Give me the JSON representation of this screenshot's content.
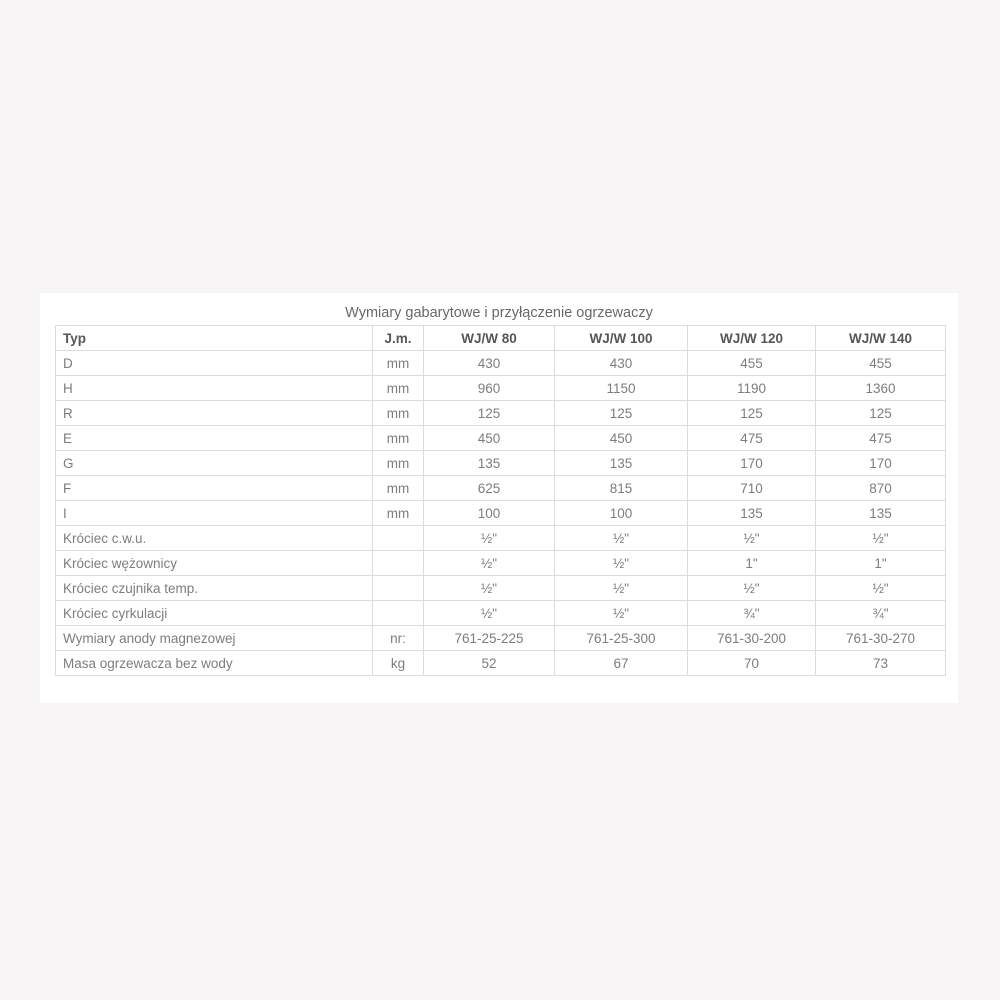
{
  "page": {
    "background_color": "#f8f5f6",
    "card_background_color": "#ffffff",
    "table_border_color": "#dcdcdc",
    "header_text_color": "#55565a",
    "body_text_color": "#7c7d80"
  },
  "table": {
    "title": "Wymiary gabarytowe i przyłączenie ogrzewaczy",
    "columns": [
      "Typ",
      "J.m.",
      "WJ/W 80",
      "WJ/W 100",
      "WJ/W 120",
      "WJ/W 140"
    ],
    "rows": [
      {
        "label": "D",
        "unit": "mm",
        "values": [
          "430",
          "430",
          "455",
          "455"
        ]
      },
      {
        "label": "H",
        "unit": "mm",
        "values": [
          "960",
          "1150",
          "1190",
          "1360"
        ]
      },
      {
        "label": "R",
        "unit": "mm",
        "values": [
          "125",
          "125",
          "125",
          "125"
        ]
      },
      {
        "label": "E",
        "unit": "mm",
        "values": [
          "450",
          "450",
          "475",
          "475"
        ]
      },
      {
        "label": "G",
        "unit": "mm",
        "values": [
          "135",
          "135",
          "170",
          "170"
        ]
      },
      {
        "label": "F",
        "unit": "mm",
        "values": [
          "625",
          "815",
          "710",
          "870"
        ]
      },
      {
        "label": "I",
        "unit": "mm",
        "values": [
          "100",
          "100",
          "135",
          "135"
        ]
      },
      {
        "label": "Króciec c.w.u.",
        "unit": "",
        "values": [
          "½\"",
          "½\"",
          "½\"",
          "½\""
        ]
      },
      {
        "label": "Króciec wężownicy",
        "unit": "",
        "values": [
          "½\"",
          "½\"",
          "1\"",
          "1\""
        ]
      },
      {
        "label": "Króciec czujnika temp.",
        "unit": "",
        "values": [
          "½\"",
          "½\"",
          "½\"",
          "½\""
        ]
      },
      {
        "label": "Króciec cyrkulacji",
        "unit": "",
        "values": [
          "½\"",
          "½\"",
          "¾\"",
          "¾\""
        ]
      },
      {
        "label": "Wymiary anody magnezowej",
        "unit": "nr:",
        "values": [
          "761-25-225",
          "761-25-300",
          "761-30-200",
          "761-30-270"
        ]
      },
      {
        "label": "Masa ogrzewacza bez wody",
        "unit": "kg",
        "values": [
          "52",
          "67",
          "70",
          "73"
        ]
      }
    ]
  }
}
